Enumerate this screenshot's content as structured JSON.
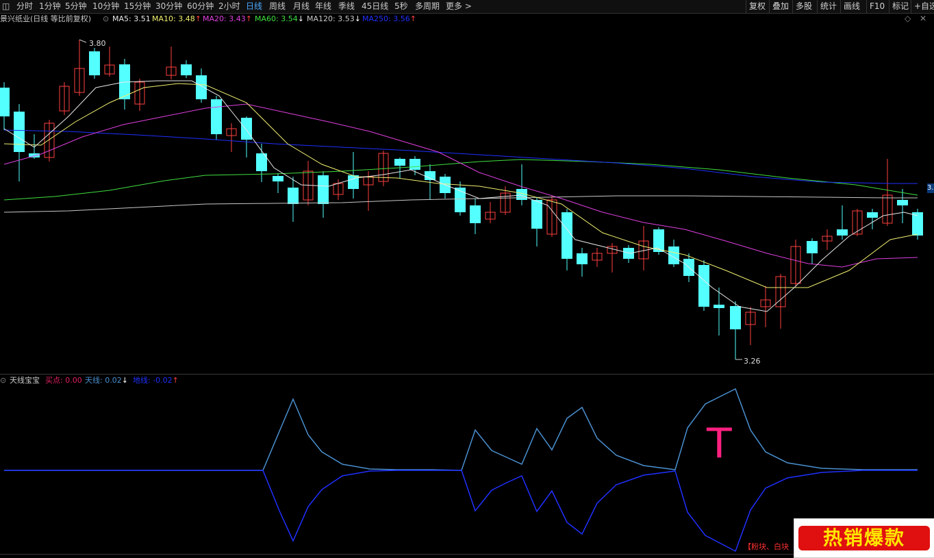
{
  "toolbar": {
    "periods": [
      "分时",
      "1分钟",
      "5分钟",
      "10分钟",
      "15分钟",
      "30分钟",
      "60分钟",
      "2小时",
      "日线",
      "周线",
      "月线",
      "年线",
      "季线",
      "45日线",
      "5秒",
      "多周期",
      "更多 >"
    ],
    "active_period": "日线",
    "right_tools": [
      "复权",
      "叠加",
      "多股",
      "统计",
      "画线",
      "F10",
      "标记",
      "+自选"
    ]
  },
  "main_legend": {
    "title": "景兴纸业(日线 等比前复权)",
    "ma": [
      {
        "label": "MA5: 3.51",
        "arrow": "",
        "color": "#e8e8e8"
      },
      {
        "label": "MA10: 3.48",
        "arrow": "↑",
        "color": "#f0f070"
      },
      {
        "label": "MA20: 3.43",
        "arrow": "↑",
        "color": "#e040e0"
      },
      {
        "label": "MA60: 3.54",
        "arrow": "↓",
        "color": "#40e040"
      },
      {
        "label": "MA120: 3.53",
        "arrow": "↓",
        "color": "#c8c8c8"
      },
      {
        "label": "MA250: 3.56",
        "arrow": "↑",
        "color": "#2030ff"
      }
    ],
    "high_label": "3.80",
    "low_label": "3.26",
    "price_tag": "3."
  },
  "sub_legend": {
    "title": "天线宝宝",
    "items": [
      {
        "label": "买点: 0.00",
        "arrow": "",
        "color": "#e02060"
      },
      {
        "label": "天线: 0.02",
        "arrow": "↓",
        "color": "#4a90d0"
      },
      {
        "label": "地线: -0.02",
        "arrow": "↑",
        "color": "#2030ff"
      }
    ],
    "marker": "T"
  },
  "promo": {
    "text": "热销爆款",
    "side_text": "【粉块、白块"
  },
  "colors": {
    "up": "#ff4040",
    "down": "#54ffff",
    "ma5": "#e8e8e8",
    "ma10": "#f0f070",
    "ma20": "#e040e0",
    "ma60": "#40e040",
    "ma120": "#c8c8c8",
    "ma250": "#2030ff",
    "sky": "#4a90d0",
    "ground": "#2030ff",
    "marker": "#ff2080"
  }
}
